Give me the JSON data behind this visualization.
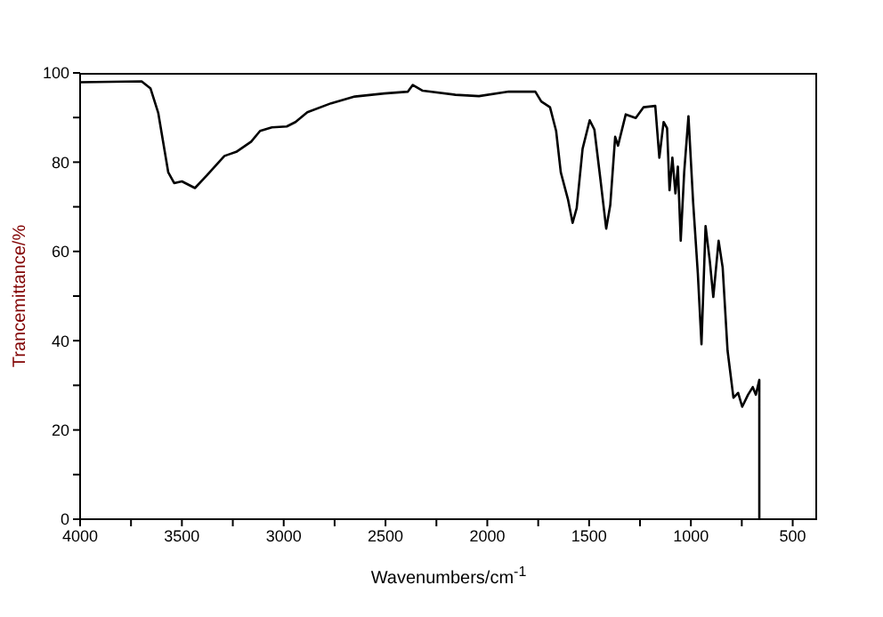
{
  "chart_data": {
    "type": "line",
    "xlabel": "Wavenumbers/cm$^{-1}$",
    "ylabel": "Trancemittance/%",
    "color": "#000000",
    "marker": "none",
    "line_style": "solid",
    "grid": false,
    "legend": false,
    "x": [
      4000,
      3698,
      3654,
      3616,
      3567,
      3538,
      3500,
      3436,
      3378,
      3291,
      3233,
      3160,
      3116,
      3058,
      2985,
      2942,
      2884,
      2767,
      2651,
      2506,
      2390,
      2366,
      2317,
      2157,
      2041,
      1895,
      1764,
      1735,
      1692,
      1662,
      1639,
      1604,
      1581,
      1561,
      1532,
      1497,
      1474,
      1445,
      1416,
      1396,
      1372,
      1358,
      1320,
      1271,
      1233,
      1175,
      1155,
      1134,
      1117,
      1105,
      1091,
      1076,
      1064,
      1050,
      1033,
      1012,
      989,
      966,
      948,
      928,
      907,
      890,
      864,
      844,
      820,
      791,
      768,
      748,
      719,
      696,
      681,
      664,
      664
    ],
    "values": [
      97.9,
      98.1,
      96.5,
      91,
      77.7,
      75.3,
      75.7,
      74.2,
      77,
      81.4,
      82.3,
      84.6,
      87,
      87.8,
      88,
      89,
      91.2,
      93.2,
      94.7,
      95.4,
      95.8,
      97.3,
      96,
      95.1,
      94.8,
      95.8,
      95.8,
      93.6,
      92.3,
      87,
      77.7,
      71.7,
      66.4,
      69.7,
      83,
      89.4,
      87.3,
      76.4,
      65.1,
      70.4,
      85.7,
      83.7,
      90.7,
      89.9,
      92.3,
      92.6,
      81,
      89,
      87.6,
      73.7,
      81,
      73,
      79,
      62.4,
      77.7,
      90.3,
      71,
      55.1,
      39.2,
      65.7,
      57.8,
      49.8,
      62.4,
      56.4,
      37.8,
      27.2,
      28.3,
      25.2,
      27.9,
      29.6,
      27.9,
      31.2,
      0
    ],
    "xlim": [
      4000,
      380
    ],
    "xticks": [
      4000,
      {
        "value": 3750,
        "label": null
      },
      3500,
      {
        "value": 3250,
        "label": null
      },
      3000,
      {
        "value": 2750,
        "label": null
      },
      2500,
      {
        "value": 2250,
        "label": null
      },
      2000,
      {
        "value": 1750,
        "label": null
      },
      1500,
      {
        "value": 1250,
        "label": null
      },
      1000,
      {
        "value": 750,
        "label": null
      },
      500
    ],
    "ylim": [
      0,
      100
    ],
    "yticks": [
      0,
      {
        "value": 10,
        "label": null
      },
      20,
      {
        "value": 30,
        "label": null
      },
      40,
      {
        "value": 50,
        "label": null
      },
      60,
      {
        "value": 70,
        "label": null
      },
      80,
      {
        "value": 90,
        "label": null
      },
      100
    ]
  }
}
